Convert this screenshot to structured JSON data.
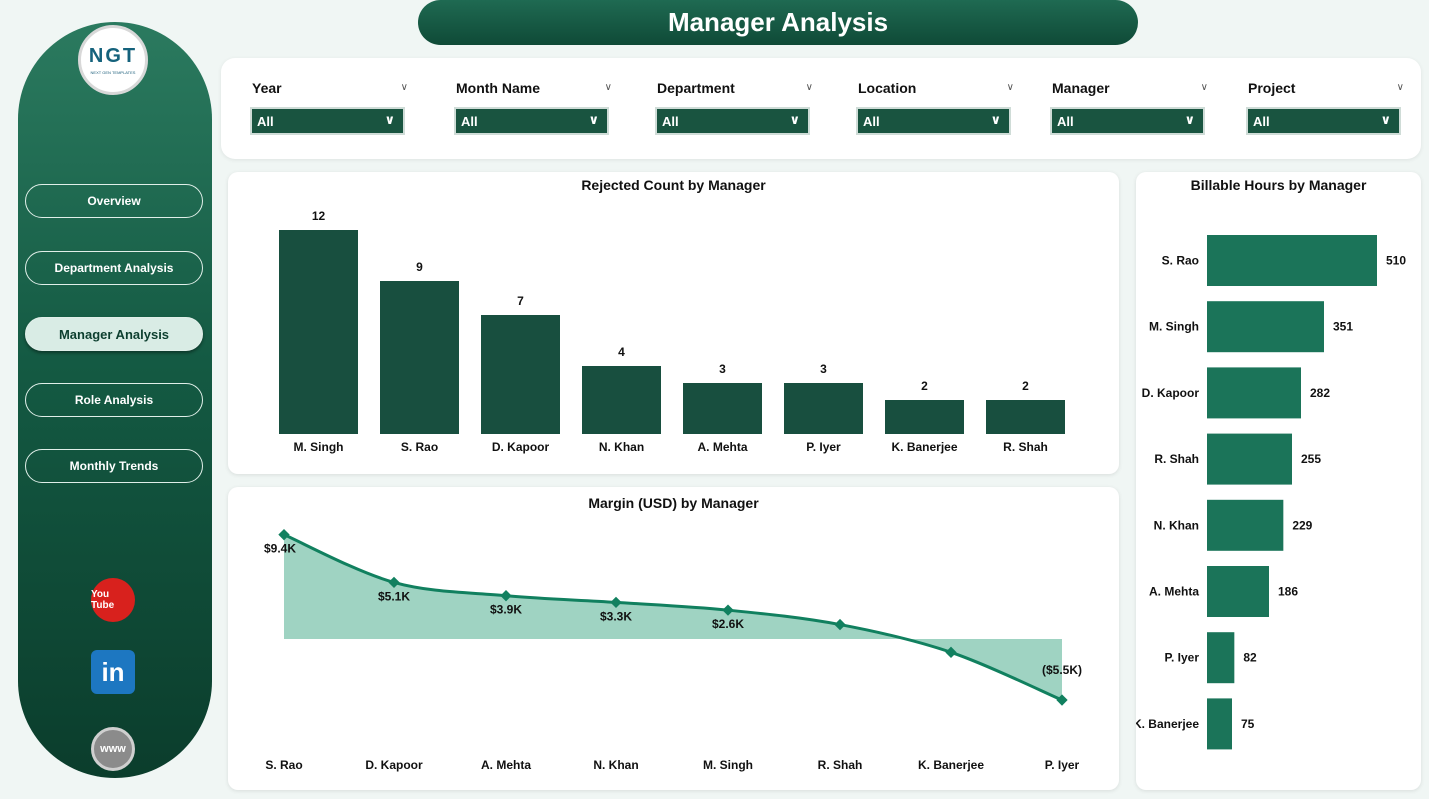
{
  "title": "Manager Analysis",
  "logo": {
    "main": "NGT",
    "sub": "NEXT GEN TEMPLATES"
  },
  "nav": [
    {
      "label": "Overview",
      "active": false
    },
    {
      "label": "Department Analysis",
      "active": false
    },
    {
      "label": "Manager Analysis",
      "active": true
    },
    {
      "label": "Role Analysis",
      "active": false
    },
    {
      "label": "Monthly Trends",
      "active": false
    }
  ],
  "social": {
    "youtube": "You Tube",
    "linkedin": "in",
    "website": "www"
  },
  "filters": [
    {
      "label": "Year",
      "value": "All"
    },
    {
      "label": "Month Name",
      "value": "All"
    },
    {
      "label": "Department",
      "value": "All"
    },
    {
      "label": "Location",
      "value": "All"
    },
    {
      "label": "Manager",
      "value": "All"
    },
    {
      "label": "Project",
      "value": "All"
    }
  ],
  "colors": {
    "dark_green": "#184f3f",
    "mid_green": "#1b7459",
    "area_fill": "#9fd3c2",
    "line": "#11805f"
  },
  "chart_data": [
    {
      "type": "bar",
      "title": "Rejected Count by Manager",
      "categories": [
        "M. Singh",
        "S. Rao",
        "D. Kapoor",
        "N. Khan",
        "A. Mehta",
        "P. Iyer",
        "K. Banerjee",
        "R. Shah"
      ],
      "values": [
        12,
        9,
        7,
        4,
        3,
        3,
        2,
        2
      ],
      "data_labels": [
        "12",
        "9",
        "7",
        "4",
        "3",
        "3",
        "2",
        "2"
      ],
      "ylim": [
        0,
        12
      ],
      "grid": false
    },
    {
      "type": "area",
      "title": "Margin (USD) by Manager",
      "categories": [
        "S. Rao",
        "D. Kapoor",
        "A. Mehta",
        "N. Khan",
        "M. Singh",
        "R. Shah",
        "K. Banerjee",
        "P. Iyer"
      ],
      "values": [
        9.4,
        5.1,
        3.9,
        3.3,
        2.6,
        1.3,
        -1.2,
        -5.5
      ],
      "data_labels": [
        "$9.4K",
        "$5.1K",
        "$3.9K",
        "$3.3K",
        "$2.6K",
        "",
        "",
        "($5.5K)"
      ],
      "unit": "thousands USD",
      "ylim": [
        -5.5,
        9.4
      ],
      "grid": false
    },
    {
      "type": "bar",
      "orientation": "horizontal",
      "title": "Billable Hours by Manager",
      "categories": [
        "S. Rao",
        "M. Singh",
        "D. Kapoor",
        "R. Shah",
        "N. Khan",
        "A. Mehta",
        "P. Iyer",
        "K. Banerjee"
      ],
      "values": [
        510,
        351,
        282,
        255,
        229,
        186,
        82,
        75
      ],
      "data_labels": [
        "510",
        "351",
        "282",
        "255",
        "229",
        "186",
        "82",
        "75"
      ],
      "xlim": [
        0,
        510
      ],
      "grid": false
    }
  ]
}
